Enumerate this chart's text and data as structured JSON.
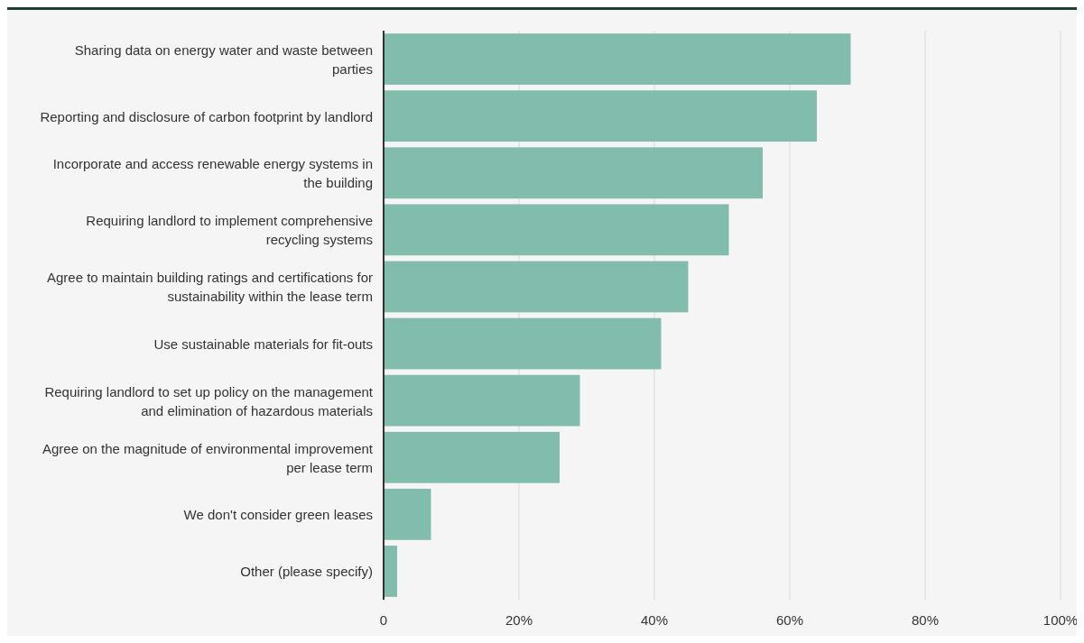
{
  "chart_data": {
    "type": "bar",
    "orientation": "horizontal",
    "categories": [
      "Sharing data on energy water and waste between parties",
      "Reporting and disclosure of carbon footprint by landlord",
      "Incorporate and access renewable energy systems in the building",
      "Requiring landlord to implement comprehensive recycling systems",
      "Agree to maintain building ratings and certifications for sustainability within the lease term",
      "Use sustainable materials for fit-outs",
      "Requiring landlord to set up policy on the management and elimination of hazardous materials",
      "Agree on the magnitude of environmental improvement per lease term",
      "We don't consider green leases",
      "Other (please specify)"
    ],
    "values": [
      69,
      64,
      56,
      51,
      45,
      41,
      29,
      26,
      7,
      2
    ],
    "color": "#82bcad",
    "xlim": [
      0,
      100
    ],
    "xticks": [
      0,
      {
        "value": 20,
        "label": "20%"
      },
      {
        "value": 40,
        "label": "40%"
      },
      {
        "value": 60,
        "label": "60%"
      },
      {
        "value": 80,
        "label": "80%"
      },
      {
        "value": 100,
        "label": "100%"
      }
    ],
    "grid": "x"
  }
}
